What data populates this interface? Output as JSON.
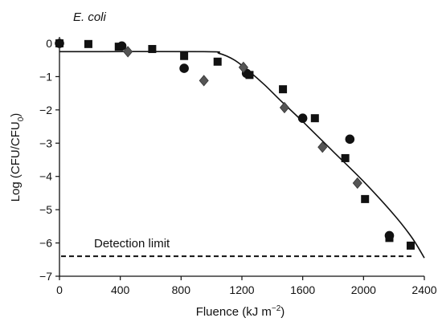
{
  "chart_data": {
    "type": "scatter",
    "title": "E. coli",
    "xlabel_main": "Fluence (kJ m",
    "xlabel_exp": "−2",
    "xlabel_close": ")",
    "ylabel_main": "Log (CFU/CFU",
    "ylabel_sub": "0",
    "ylabel_close": ")",
    "xlim": [
      0,
      2400
    ],
    "ylim": [
      -7,
      0
    ],
    "x_ticks": [
      0,
      400,
      800,
      1200,
      1600,
      2000,
      2400
    ],
    "y_ticks": [
      0,
      -1,
      -2,
      -3,
      -4,
      -5,
      -6,
      -7
    ],
    "grid": false,
    "legend": "none",
    "series": [
      {
        "marker": "square",
        "points": [
          {
            "x": 0,
            "y": 0.0
          },
          {
            "x": 190,
            "y": -0.02
          },
          {
            "x": 390,
            "y": -0.1
          },
          {
            "x": 610,
            "y": -0.17
          },
          {
            "x": 820,
            "y": -0.38
          },
          {
            "x": 1040,
            "y": -0.55
          },
          {
            "x": 1250,
            "y": -0.95
          },
          {
            "x": 1470,
            "y": -1.38
          },
          {
            "x": 1680,
            "y": -2.25
          },
          {
            "x": 1880,
            "y": -3.45
          },
          {
            "x": 2010,
            "y": -4.68
          },
          {
            "x": 2170,
            "y": -5.85
          },
          {
            "x": 2310,
            "y": -6.08
          }
        ]
      },
      {
        "marker": "circle",
        "points": [
          {
            "x": 0,
            "y": 0.0
          },
          {
            "x": 410,
            "y": -0.08
          },
          {
            "x": 820,
            "y": -0.75
          },
          {
            "x": 1230,
            "y": -0.9
          },
          {
            "x": 1600,
            "y": -2.25
          },
          {
            "x": 1910,
            "y": -2.88
          },
          {
            "x": 2170,
            "y": -5.78
          }
        ]
      },
      {
        "marker": "diamond",
        "points": [
          {
            "x": 450,
            "y": -0.25
          },
          {
            "x": 950,
            "y": -1.12
          },
          {
            "x": 1210,
            "y": -0.72
          },
          {
            "x": 1480,
            "y": -1.93
          },
          {
            "x": 1730,
            "y": -3.12
          },
          {
            "x": 1960,
            "y": -4.2
          }
        ]
      }
    ],
    "fit_curve": [
      {
        "x": 0,
        "y": -0.25
      },
      {
        "x": 950,
        "y": -0.25
      },
      {
        "x": 1050,
        "y": -0.3
      },
      {
        "x": 1150,
        "y": -0.5
      },
      {
        "x": 1250,
        "y": -0.85
      },
      {
        "x": 1350,
        "y": -1.25
      },
      {
        "x": 1450,
        "y": -1.7
      },
      {
        "x": 1600,
        "y": -2.35
      },
      {
        "x": 1800,
        "y": -3.25
      },
      {
        "x": 2000,
        "y": -4.15
      },
      {
        "x": 2200,
        "y": -5.15
      },
      {
        "x": 2320,
        "y": -5.85
      },
      {
        "x": 2400,
        "y": -6.45
      }
    ],
    "detection_limit": {
      "label": "Detection limit",
      "y": -6.4
    }
  }
}
